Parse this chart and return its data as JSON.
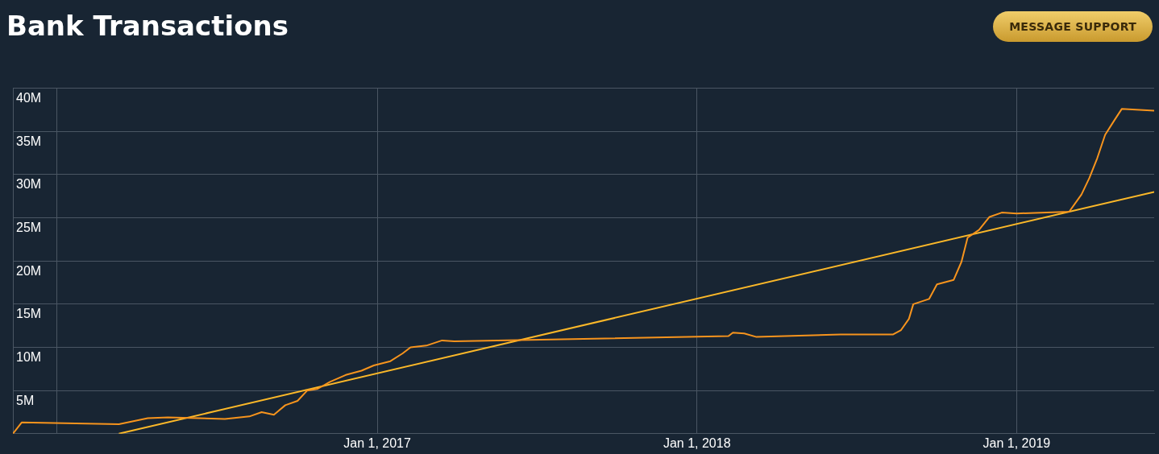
{
  "chart_data": {
    "type": "line",
    "title": "Bank Transactions",
    "annotations": [
      "MESSAGE SUPPORT"
    ],
    "xlim": [
      "2015-11-12",
      "2019-06-07"
    ],
    "xticks": [
      {
        "value": "2016-01-01",
        "label": null
      },
      {
        "value": "2017-01-01",
        "label": "Jan 1, 2017"
      },
      {
        "value": "2018-01-01",
        "label": "Jan 1, 2018"
      },
      {
        "value": "2019-01-01",
        "label": "Jan 1, 2019"
      }
    ],
    "ylim": [
      0,
      40000000
    ],
    "yticks": [
      {
        "value": 0,
        "label": null
      },
      {
        "value": 5000000,
        "label": "5M"
      },
      {
        "value": 10000000,
        "label": "10M"
      },
      {
        "value": 15000000,
        "label": "15M"
      },
      {
        "value": 20000000,
        "label": "20M"
      },
      {
        "value": 25000000,
        "label": "25M"
      },
      {
        "value": 30000000,
        "label": "30M"
      },
      {
        "value": 35000000,
        "label": "35M"
      },
      {
        "value": 40000000,
        "label": "40M"
      }
    ],
    "grid": true,
    "legend": false,
    "series": [
      {
        "type": "line",
        "color": "#f7941d",
        "x": [
          "2015-11-12",
          "2015-11-22",
          "2016-03-12",
          "2016-04-14",
          "2016-05-07",
          "2016-07-11",
          "2016-08-08",
          "2016-08-22",
          "2016-09-05",
          "2016-09-18",
          "2016-10-02",
          "2016-10-13",
          "2016-10-25",
          "2016-11-08",
          "2016-11-26",
          "2016-12-14",
          "2016-12-28",
          "2017-01-16",
          "2017-01-30",
          "2017-02-08",
          "2017-02-26",
          "2017-03-16",
          "2017-03-30",
          "2018-02-06",
          "2018-02-11",
          "2018-02-24",
          "2018-03-10",
          "2018-06-14",
          "2018-08-13",
          "2018-08-22",
          "2018-08-31",
          "2018-09-05",
          "2018-09-23",
          "2018-10-02",
          "2018-10-21",
          "2018-10-30",
          "2018-11-06",
          "2018-11-19",
          "2018-12-01",
          "2018-12-15",
          "2019-01-01",
          "2019-03-02",
          "2019-03-16",
          "2019-03-25",
          "2019-04-03",
          "2019-04-12",
          "2019-04-22",
          "2019-05-01",
          "2019-06-07"
        ],
        "values": [
          0,
          1300000,
          1100000,
          1800000,
          1900000,
          1700000,
          2000000,
          2500000,
          2200000,
          3300000,
          3800000,
          5000000,
          5200000,
          6000000,
          6800000,
          7300000,
          7900000,
          8400000,
          9300000,
          10000000,
          10200000,
          10800000,
          10700000,
          11300000,
          11700000,
          11600000,
          11200000,
          11500000,
          11500000,
          12000000,
          13300000,
          15000000,
          15600000,
          17300000,
          17800000,
          19900000,
          22700000,
          23600000,
          25100000,
          25600000,
          25500000,
          25700000,
          27700000,
          29600000,
          31900000,
          34600000,
          36200000,
          37600000,
          37400000
        ]
      },
      {
        "type": "line",
        "color": "#fbb829",
        "x": [
          "2016-03-12",
          "2019-06-07"
        ],
        "values": [
          0,
          28000000
        ]
      }
    ]
  }
}
